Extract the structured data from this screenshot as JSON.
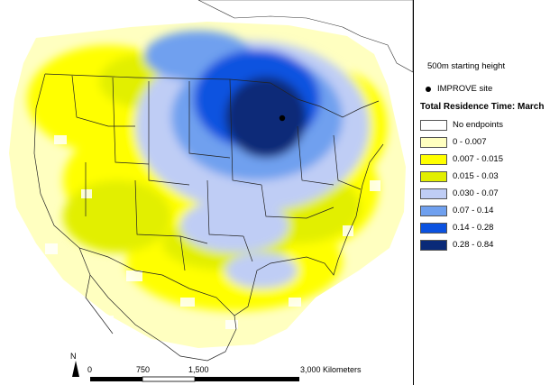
{
  "legend": {
    "starting_height": "500m starting height",
    "site_label": "IMPROVE site",
    "title": "Total Residence Time: March",
    "classes": [
      {
        "label": "No endpoints",
        "color": "#ffffff"
      },
      {
        "label": "0 - 0.007",
        "color": "#ffffc0"
      },
      {
        "label": "0.007 - 0.015",
        "color": "#ffff00"
      },
      {
        "label": "0.015 - 0.03",
        "color": "#e2ef00"
      },
      {
        "label": "0.030 - 0.07",
        "color": "#bfcdf5"
      },
      {
        "label": "0.07 - 0.14",
        "color": "#6fa0ef"
      },
      {
        "label": "0.14 - 0.28",
        "color": "#0b52e0"
      },
      {
        "label": "0.28 - 0.84",
        "color": "#0a2a78"
      }
    ]
  },
  "scalebar": {
    "ticks": [
      "0",
      "750",
      "1,500",
      "3,000 Kilometers"
    ]
  },
  "north_arrow": {
    "label": "N"
  }
}
